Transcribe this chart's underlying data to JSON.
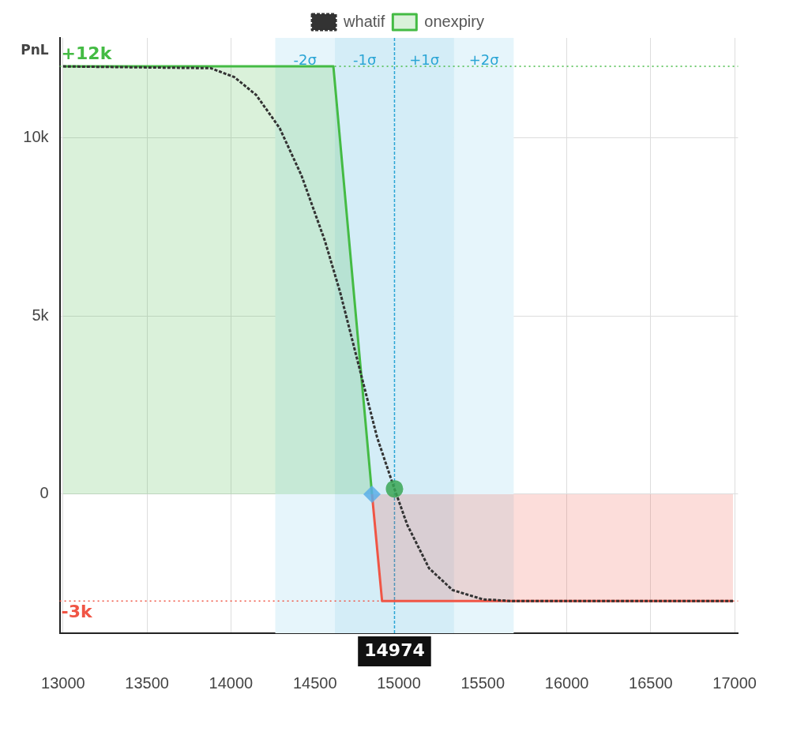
{
  "chart_data": {
    "type": "area",
    "ylabel": "PnL",
    "xlim": [
      12980,
      17020
    ],
    "ylim": [
      -3900,
      12800
    ],
    "xticks": [
      13000,
      13500,
      14000,
      14500,
      15000,
      15500,
      16000,
      16500,
      17000
    ],
    "yticks": [
      {
        "value": 0,
        "label": "0"
      },
      {
        "value": 5000,
        "label": "5k"
      },
      {
        "value": 10000,
        "label": "10k"
      }
    ],
    "grid": true,
    "legend": "top",
    "marker": "none",
    "series": [
      {
        "name": "onexpiry",
        "color": "#44bb44",
        "x": [
          13000,
          14610,
          14840
        ],
        "values": [
          12000,
          12000,
          0
        ]
      },
      {
        "color": "#f05545",
        "x": [
          14840,
          14900,
          16990
        ],
        "values": [
          0,
          -3000,
          -3000
        ]
      },
      {
        "name": "whatif",
        "type": "line",
        "color": "#333333",
        "line_style": "dashed",
        "x": [
          13000,
          13880,
          14020,
          14150,
          14290,
          14420,
          14560,
          14650,
          14760,
          14870,
          14970,
          15050,
          15180,
          15320,
          15500,
          15680,
          16990
        ],
        "values": [
          12000,
          11950,
          11700,
          11200,
          10270,
          8940,
          7100,
          5670,
          3630,
          1600,
          200,
          -860,
          -2080,
          -2690,
          -2950,
          -3000,
          -3000
        ]
      },
      {
        "type": "scatter",
        "color": "#3aa655",
        "marker": "circle",
        "x": [
          14974
        ],
        "values": [
          150
        ]
      },
      {
        "type": "scatter",
        "color": "#5aaee8",
        "marker": "diamond",
        "x": [
          14840
        ],
        "values": [
          0
        ]
      }
    ],
    "ref_lines": [
      {
        "axis": "y",
        "value": 12000,
        "label": "+12k",
        "color": "#44bb44",
        "line_style": "dotted"
      },
      {
        "axis": "y",
        "value": -3000,
        "label": "-3k",
        "color": "#f05545",
        "line_style": "dotted"
      },
      {
        "axis": "x",
        "value": 14974,
        "label": "14974",
        "color": "#2aa5d5",
        "line_style": "dashed"
      }
    ],
    "bands": [
      {
        "axis": "x",
        "from": 14264,
        "to": 14619,
        "label": "-2σ",
        "color": "#e6f5fb"
      },
      {
        "axis": "x",
        "from": 14619,
        "to": 14974,
        "label": "-1σ",
        "color": "#d4edf7"
      },
      {
        "axis": "x",
        "from": 14974,
        "to": 15329,
        "label": "+1σ",
        "color": "#d4edf7"
      },
      {
        "axis": "x",
        "from": 15329,
        "to": 15684,
        "label": "+2σ",
        "color": "#e6f5fb"
      }
    ]
  }
}
